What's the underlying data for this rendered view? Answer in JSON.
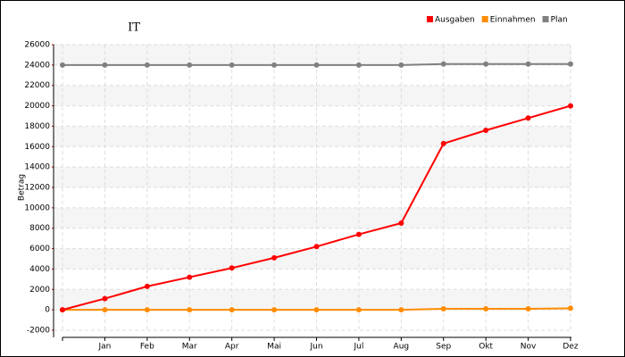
{
  "chart_data": {
    "type": "line",
    "title": "IT",
    "y_label": "Betrag",
    "categories": [
      null,
      "Jan",
      "Feb",
      "Mar",
      "Apr",
      "Mai",
      "Jun",
      "Jul",
      "Aug",
      "Sep",
      "Okt",
      "Nov",
      "Dez"
    ],
    "series": [
      {
        "name": "Ausgaben",
        "color": "#ff0000",
        "values": [
          0,
          1100,
          2300,
          3200,
          4100,
          5100,
          6200,
          7400,
          8500,
          16300,
          17600,
          18800,
          20000
        ]
      },
      {
        "name": "Einnahmen",
        "color": "#ff8c00",
        "values": [
          0,
          0,
          0,
          0,
          0,
          0,
          0,
          0,
          0,
          100,
          100,
          100,
          150
        ]
      },
      {
        "name": "Plan",
        "color": "#808080",
        "values": [
          24000,
          24000,
          24000,
          24000,
          24000,
          24000,
          24000,
          24000,
          24000,
          24100,
          24100,
          24100,
          24100
        ]
      }
    ],
    "ylim": [
      -2000,
      26000
    ],
    "yticks": [
      -2000,
      0,
      2000,
      4000,
      6000,
      8000,
      10000,
      12000,
      14000,
      16000,
      18000,
      20000,
      22000,
      24000,
      26000
    ],
    "grid": true,
    "legend": "top-right"
  }
}
